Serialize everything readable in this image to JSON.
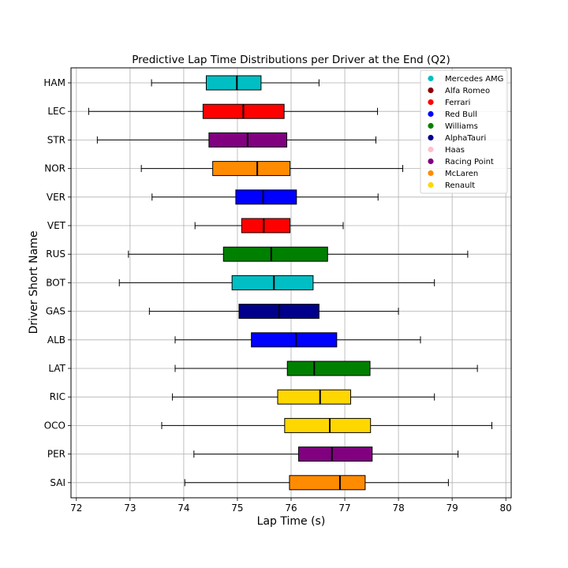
{
  "chart_data": {
    "type": "box",
    "title": "Predictive Lap Time Distributions per Driver at the End (Q2)",
    "xlabel": "Lap Time (s)",
    "ylabel": "Driver Short Name",
    "xlim": [
      71.9,
      80.1
    ],
    "xticks": [
      72,
      73,
      74,
      75,
      76,
      77,
      78,
      79,
      80
    ],
    "grid": true,
    "legend_position": "top-right",
    "legend": [
      {
        "name": "Mercedes AMG",
        "color": "#00BFC4"
      },
      {
        "name": "Alfa Romeo",
        "color": "#8B0000"
      },
      {
        "name": "Ferrari",
        "color": "#FF0000"
      },
      {
        "name": "Red Bull",
        "color": "#0000FF"
      },
      {
        "name": "Williams",
        "color": "#008000"
      },
      {
        "name": "AlphaTauri",
        "color": "#00008B"
      },
      {
        "name": "Haas",
        "color": "#FFC0CB"
      },
      {
        "name": "Racing Point",
        "color": "#800080"
      },
      {
        "name": "McLaren",
        "color": "#FF8C00"
      },
      {
        "name": "Renault",
        "color": "#FFD700"
      }
    ],
    "series": [
      {
        "driver": "HAM",
        "team": "Mercedes AMG",
        "color": "#00BFC4",
        "whisker_low": 73.4,
        "q1": 74.42,
        "median": 74.99,
        "q3": 75.44,
        "whisker_high": 76.52
      },
      {
        "driver": "LEC",
        "team": "Ferrari",
        "color": "#FF0000",
        "whisker_low": 72.23,
        "q1": 74.36,
        "median": 75.11,
        "q3": 75.87,
        "whisker_high": 77.61
      },
      {
        "driver": "STR",
        "team": "Racing Point",
        "color": "#800080",
        "whisker_low": 72.39,
        "q1": 74.47,
        "median": 75.19,
        "q3": 75.92,
        "whisker_high": 77.58
      },
      {
        "driver": "NOR",
        "team": "McLaren",
        "color": "#FF8C00",
        "whisker_low": 73.21,
        "q1": 74.54,
        "median": 75.37,
        "q3": 75.98,
        "whisker_high": 78.08
      },
      {
        "driver": "VER",
        "team": "Red Bull",
        "color": "#0000FF",
        "whisker_low": 73.41,
        "q1": 74.97,
        "median": 75.48,
        "q3": 76.1,
        "whisker_high": 77.62
      },
      {
        "driver": "VET",
        "team": "Ferrari",
        "color": "#FF0000",
        "whisker_low": 74.21,
        "q1": 75.08,
        "median": 75.49,
        "q3": 75.98,
        "whisker_high": 76.97
      },
      {
        "driver": "RUS",
        "team": "Williams",
        "color": "#008000",
        "whisker_low": 72.97,
        "q1": 74.74,
        "median": 75.63,
        "q3": 76.68,
        "whisker_high": 79.29
      },
      {
        "driver": "BOT",
        "team": "Mercedes AMG",
        "color": "#00BFC4",
        "whisker_low": 72.8,
        "q1": 74.9,
        "median": 75.68,
        "q3": 76.41,
        "whisker_high": 78.67
      },
      {
        "driver": "GAS",
        "team": "AlphaTauri",
        "color": "#00008B",
        "whisker_low": 73.36,
        "q1": 75.03,
        "median": 75.78,
        "q3": 76.52,
        "whisker_high": 78.0
      },
      {
        "driver": "ALB",
        "team": "Red Bull",
        "color": "#0000FF",
        "whisker_low": 73.84,
        "q1": 75.26,
        "median": 76.09,
        "q3": 76.85,
        "whisker_high": 78.41
      },
      {
        "driver": "LAT",
        "team": "Williams",
        "color": "#008000",
        "whisker_low": 73.84,
        "q1": 75.93,
        "median": 76.43,
        "q3": 77.47,
        "whisker_high": 79.47
      },
      {
        "driver": "RIC",
        "team": "Renault",
        "color": "#FFD700",
        "whisker_low": 73.79,
        "q1": 75.75,
        "median": 76.54,
        "q3": 77.11,
        "whisker_high": 78.67
      },
      {
        "driver": "OCO",
        "team": "Renault",
        "color": "#FFD700",
        "whisker_low": 73.59,
        "q1": 75.88,
        "median": 76.72,
        "q3": 77.48,
        "whisker_high": 79.74
      },
      {
        "driver": "PER",
        "team": "Racing Point",
        "color": "#800080",
        "whisker_low": 74.19,
        "q1": 76.14,
        "median": 76.76,
        "q3": 77.51,
        "whisker_high": 79.11
      },
      {
        "driver": "SAI",
        "team": "McLaren",
        "color": "#FF8C00",
        "whisker_low": 74.02,
        "q1": 75.97,
        "median": 76.91,
        "q3": 77.38,
        "whisker_high": 78.93
      }
    ]
  }
}
